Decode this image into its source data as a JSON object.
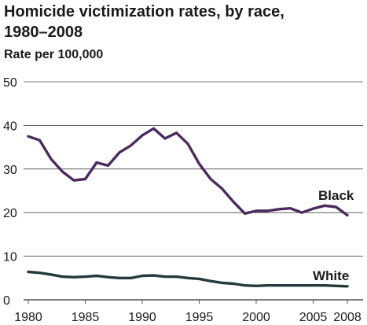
{
  "chart_data": {
    "type": "line",
    "title_line1": "Homicide victimization rates, by race,",
    "title_line2": "1980–2008",
    "ylabel": "Rate per 100,000",
    "xlabel": "",
    "xlim": [
      1980,
      2008
    ],
    "ylim": [
      0,
      50
    ],
    "yticks": [
      0,
      10,
      20,
      30,
      40,
      50
    ],
    "xticks": [
      1980,
      1985,
      1990,
      1995,
      2000,
      2005,
      2008
    ],
    "grid": "horizontal",
    "x": [
      1980,
      1981,
      1982,
      1983,
      1984,
      1985,
      1986,
      1987,
      1988,
      1989,
      1990,
      1991,
      1992,
      1993,
      1994,
      1995,
      1996,
      1997,
      1998,
      1999,
      2000,
      2001,
      2002,
      2003,
      2004,
      2005,
      2006,
      2007,
      2008
    ],
    "series": [
      {
        "name": "Black",
        "color": "#4b2a5e",
        "values": [
          37.5,
          36.6,
          32.3,
          29.4,
          27.4,
          27.7,
          31.5,
          30.8,
          33.8,
          35.4,
          37.7,
          39.3,
          37.0,
          38.3,
          35.8,
          31.2,
          27.7,
          25.5,
          22.5,
          19.8,
          20.4,
          20.4,
          20.8,
          21.0,
          20.0,
          20.9,
          21.6,
          21.3,
          19.4
        ]
      },
      {
        "name": "White",
        "color": "#253b3b",
        "values": [
          6.4,
          6.2,
          5.8,
          5.3,
          5.2,
          5.3,
          5.5,
          5.2,
          5.0,
          5.0,
          5.5,
          5.6,
          5.3,
          5.3,
          5.0,
          4.8,
          4.3,
          3.9,
          3.7,
          3.3,
          3.2,
          3.3,
          3.3,
          3.3,
          3.3,
          3.3,
          3.3,
          3.2,
          3.1
        ]
      }
    ]
  }
}
